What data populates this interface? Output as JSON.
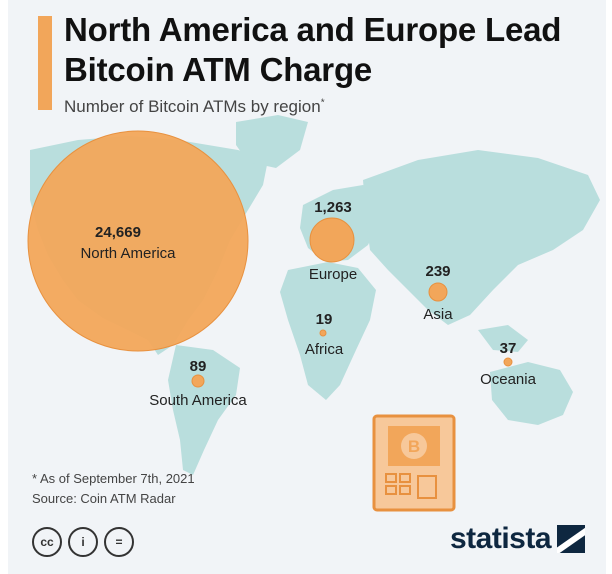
{
  "header": {
    "title": "North America and Europe Lead Bitcoin ATM Charge",
    "subtitle": "Number of Bitcoin ATMs by region",
    "subtitle_marker": "*"
  },
  "chart_data": {
    "type": "bubble-map",
    "title": "North America and Europe Lead Bitcoin ATM Charge",
    "subtitle": "Number of Bitcoin ATMs by region*",
    "series": [
      {
        "region": "North America",
        "value": 24669,
        "label": "24,669"
      },
      {
        "region": "Europe",
        "value": 1263,
        "label": "1,263"
      },
      {
        "region": "Asia",
        "value": 239,
        "label": "239"
      },
      {
        "region": "South America",
        "value": 89,
        "label": "89"
      },
      {
        "region": "Oceania",
        "value": 37,
        "label": "37"
      },
      {
        "region": "Africa",
        "value": 19,
        "label": "19"
      }
    ],
    "colors": {
      "bubble": "#f2a65a",
      "bubble_stroke": "#e8913f",
      "land": "#b9dedd",
      "background": "#f1f4f7"
    }
  },
  "footer": {
    "note": "* As of September 7th, 2021",
    "source": "Source: Coin ATM Radar",
    "license_icons": [
      "cc-icon",
      "attribution-icon",
      "no-derivatives-icon"
    ],
    "license_labels": [
      "cc",
      "i",
      "="
    ],
    "brand": "statista"
  }
}
